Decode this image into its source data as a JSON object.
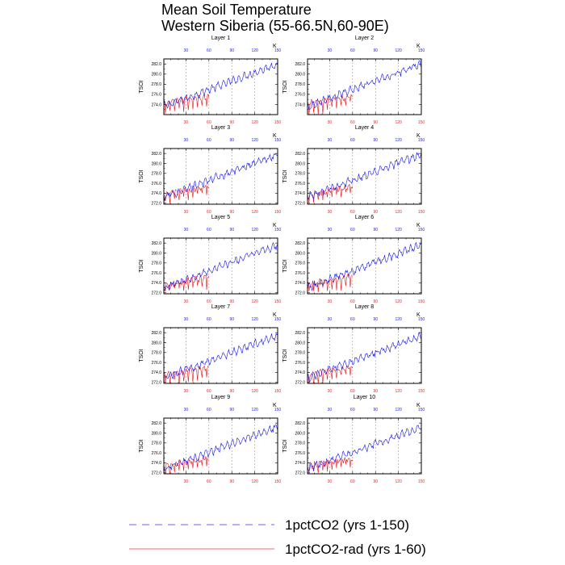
{
  "figure": {
    "title_line1": "Mean Soil Temperature",
    "title_line2": "Western Siberia (55-66.5N,60-90E)"
  },
  "chart_data": {
    "type": "line",
    "ylabel": "TSOI",
    "units": "K",
    "x_range": [
      1,
      150
    ],
    "top_axis_ticks": [
      "30",
      "60",
      "90",
      "120",
      "150"
    ],
    "bottom_axis_ticks": [
      "30",
      "60",
      "90",
      "120",
      "150"
    ],
    "vertical_reference_lines": [
      30,
      60,
      90,
      120
    ],
    "legend_position": "bottom",
    "legend": [
      {
        "label": "1pctCO2 (yrs 1-150)",
        "color": "#3030ff",
        "style": "dashed"
      },
      {
        "label": "1pctCO2-rad (yrs 1-60)",
        "color": "#ff3030",
        "style": "solid"
      }
    ],
    "series_colors": {
      "1pctCO2": "#1010ee",
      "1pctCO2_rad": "#ee1010"
    },
    "panels": [
      {
        "title": "Layer 1",
        "ylim": [
          272.0,
          283.0
        ],
        "yticks": [
          "274.0",
          "276.0",
          "278.0",
          "280.0",
          "282.0"
        ],
        "co2_start": 273.6,
        "co2_end": 282.0,
        "rad_start": 274.2,
        "rad_end": 275.6
      },
      {
        "title": "Layer 2",
        "ylim": [
          272.0,
          283.0
        ],
        "yticks": [
          "274.0",
          "276.0",
          "278.0",
          "280.0",
          "282.0"
        ],
        "co2_start": 273.6,
        "co2_end": 282.0,
        "rad_start": 274.2,
        "rad_end": 275.6
      },
      {
        "title": "Layer 3",
        "ylim": [
          271.8,
          283.0
        ],
        "yticks": [
          "272.0",
          "274.0",
          "276.0",
          "278.0",
          "280.0",
          "282.0"
        ],
        "co2_start": 273.2,
        "co2_end": 281.8,
        "rad_start": 273.8,
        "rad_end": 275.4
      },
      {
        "title": "Layer 4",
        "ylim": [
          271.8,
          283.0
        ],
        "yticks": [
          "272.0",
          "274.0",
          "276.0",
          "278.0",
          "280.0",
          "282.0"
        ],
        "co2_start": 273.2,
        "co2_end": 281.8,
        "rad_start": 273.8,
        "rad_end": 275.4
      },
      {
        "title": "Layer 5",
        "ylim": [
          271.8,
          283.0
        ],
        "yticks": [
          "272.0",
          "274.0",
          "276.0",
          "278.0",
          "280.0",
          "282.0"
        ],
        "co2_start": 273.0,
        "co2_end": 281.6,
        "rad_start": 273.6,
        "rad_end": 275.2
      },
      {
        "title": "Layer 6",
        "ylim": [
          271.8,
          283.0
        ],
        "yticks": [
          "272.0",
          "274.0",
          "276.0",
          "278.0",
          "280.0",
          "282.0"
        ],
        "co2_start": 273.0,
        "co2_end": 281.6,
        "rad_start": 273.6,
        "rad_end": 275.2
      },
      {
        "title": "Layer 7",
        "ylim": [
          271.8,
          283.0
        ],
        "yticks": [
          "272.0",
          "274.0",
          "276.0",
          "278.0",
          "280.0",
          "282.0"
        ],
        "co2_start": 272.9,
        "co2_end": 281.4,
        "rad_start": 273.5,
        "rad_end": 275.0
      },
      {
        "title": "Layer 8",
        "ylim": [
          271.8,
          283.0
        ],
        "yticks": [
          "272.0",
          "274.0",
          "276.0",
          "278.0",
          "280.0",
          "282.0"
        ],
        "co2_start": 272.9,
        "co2_end": 281.4,
        "rad_start": 273.5,
        "rad_end": 275.0
      },
      {
        "title": "Layer 9",
        "ylim": [
          271.8,
          283.0
        ],
        "yticks": [
          "272.0",
          "274.0",
          "276.0",
          "278.0",
          "280.0",
          "282.0"
        ],
        "co2_start": 272.8,
        "co2_end": 281.2,
        "rad_start": 273.4,
        "rad_end": 274.9
      },
      {
        "title": "Layer 10",
        "ylim": [
          271.8,
          283.0
        ],
        "yticks": [
          "272.0",
          "274.0",
          "276.0",
          "278.0",
          "280.0",
          "282.0"
        ],
        "co2_start": 272.8,
        "co2_end": 281.2,
        "rad_start": 273.4,
        "rad_end": 274.9
      }
    ]
  }
}
